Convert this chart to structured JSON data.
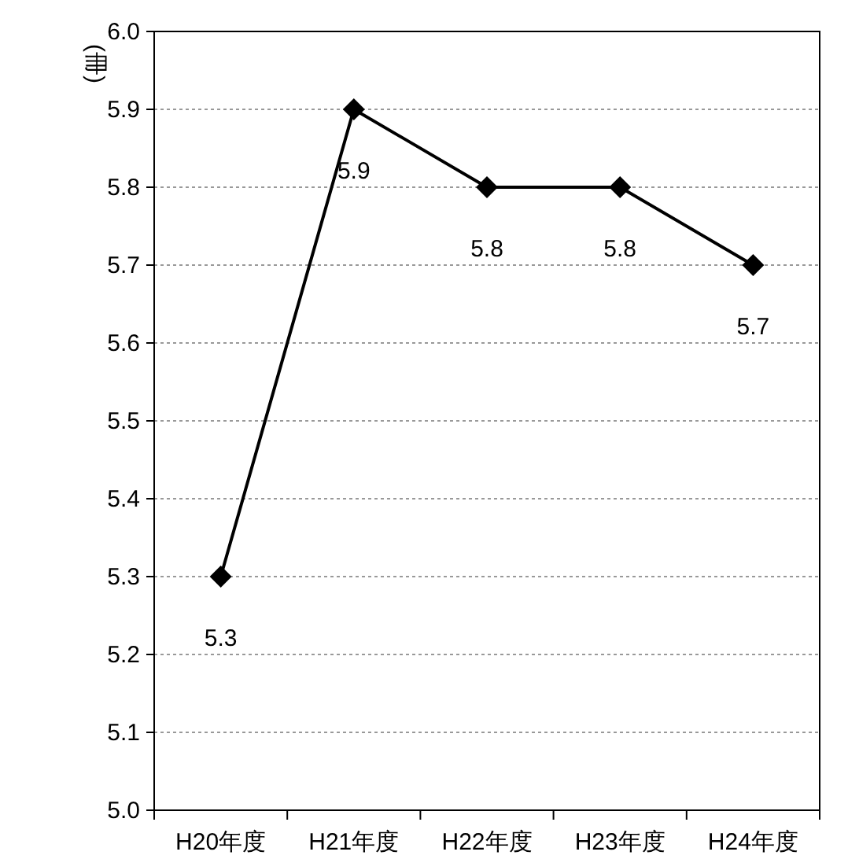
{
  "chart_data": {
    "type": "line",
    "ylabel": "(冊)",
    "categories": [
      "H20年度",
      "H21年度",
      "H22年度",
      "H23年度",
      "H24年度"
    ],
    "values": [
      5.3,
      5.9,
      5.8,
      5.8,
      5.7
    ],
    "color": "#000000",
    "ylim": [
      5.0,
      6.0
    ],
    "yticks": [
      {
        "value": 5,
        "label": "5.0"
      },
      5.1,
      5.2,
      5.3,
      5.4,
      5.5,
      5.6,
      5.7,
      5.8,
      5.9,
      {
        "value": 6,
        "label": "6.0"
      }
    ],
    "grid": "y",
    "marker": "diamond",
    "line_style": "solid",
    "data_labels": true
  }
}
